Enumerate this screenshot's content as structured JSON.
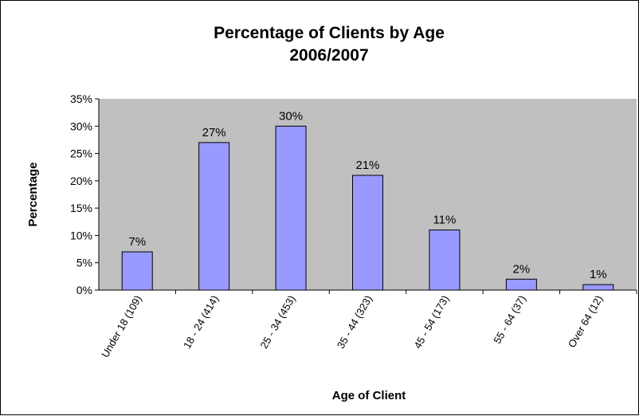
{
  "chart_data": {
    "type": "bar",
    "title": "Percentage of Clients by Age",
    "subtitle": "2006/2007",
    "xlabel": "Age of Client",
    "ylabel": "Percentage",
    "categories": [
      "Under 18 (109)",
      "18 - 24 (414)",
      "25 - 34 (453)",
      "35 - 44 (323)",
      "45 - 54 (173)",
      "55 - 64 (37)",
      "Over 64 (12)"
    ],
    "values": [
      7,
      27,
      30,
      21,
      11,
      2,
      1
    ],
    "data_labels": [
      "7%",
      "27%",
      "30%",
      "21%",
      "11%",
      "2%",
      "1%"
    ],
    "ylim": [
      0,
      35
    ],
    "yticks": [
      "0%",
      "5%",
      "10%",
      "15%",
      "20%",
      "25%",
      "30%",
      "35%"
    ],
    "ytick_values": [
      0,
      5,
      10,
      15,
      20,
      25,
      30,
      35
    ],
    "grid": false,
    "legend": "none",
    "colors": {
      "bar_fill": "#9999ff",
      "bar_stroke": "#000000",
      "plot_background": "#c0c0c0"
    }
  }
}
